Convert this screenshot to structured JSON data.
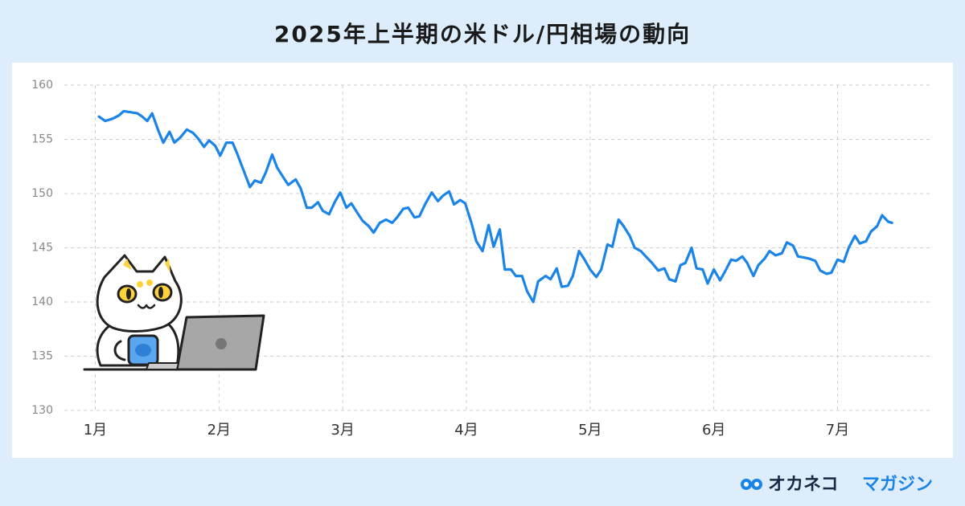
{
  "chart_data": {
    "type": "line",
    "title": "2025年上半期の米ドル/円相場の動向",
    "color": "#1a84e8",
    "grid": true,
    "xlim": [
      0.75,
      7.77
    ],
    "ylim": [
      130,
      160
    ],
    "yticks": [
      130,
      135,
      140,
      145,
      150,
      155,
      160
    ],
    "xticks": [
      {
        "value": 1,
        "label": "1月"
      },
      {
        "value": 2,
        "label": "2月"
      },
      {
        "value": 3,
        "label": "3月"
      },
      {
        "value": 4,
        "label": "4月"
      },
      {
        "value": 5,
        "label": "5月"
      },
      {
        "value": 6,
        "label": "6月"
      },
      {
        "value": 7,
        "label": "7月"
      }
    ],
    "x": [
      1.03,
      1.08,
      1.14,
      1.19,
      1.23,
      1.29,
      1.34,
      1.38,
      1.42,
      1.46,
      1.51,
      1.55,
      1.6,
      1.64,
      1.69,
      1.74,
      1.79,
      1.83,
      1.88,
      1.92,
      1.97,
      2.01,
      2.06,
      2.11,
      2.15,
      2.2,
      2.25,
      2.29,
      2.34,
      2.38,
      2.43,
      2.47,
      2.52,
      2.56,
      2.62,
      2.66,
      2.71,
      2.75,
      2.8,
      2.84,
      2.89,
      2.94,
      2.98,
      3.03,
      3.07,
      3.12,
      3.16,
      3.21,
      3.25,
      3.3,
      3.35,
      3.4,
      3.44,
      3.49,
      3.53,
      3.58,
      3.62,
      3.67,
      3.72,
      3.77,
      3.81,
      3.86,
      3.9,
      3.95,
      3.99,
      4.04,
      4.08,
      4.13,
      4.18,
      4.22,
      4.27,
      4.31,
      4.36,
      4.4,
      4.45,
      4.49,
      4.54,
      4.58,
      4.64,
      4.68,
      4.73,
      4.77,
      4.82,
      4.86,
      4.91,
      4.95,
      5.0,
      5.05,
      5.09,
      5.14,
      5.18,
      5.23,
      5.27,
      5.32,
      5.36,
      5.41,
      5.45,
      5.5,
      5.55,
      5.6,
      5.64,
      5.69,
      5.73,
      5.77,
      5.82,
      5.86,
      5.91,
      5.95,
      6.0,
      6.05,
      6.09,
      6.14,
      6.18,
      6.23,
      6.27,
      6.32,
      6.36,
      6.41,
      6.45,
      6.5,
      6.55,
      6.59,
      6.64,
      6.68,
      6.73,
      6.77,
      6.82,
      6.86,
      6.91,
      6.95,
      7.0,
      7.05,
      7.09,
      7.14,
      7.18,
      7.23,
      7.27,
      7.32,
      7.36,
      7.41,
      7.44
    ],
    "values": [
      157.1,
      156.7,
      156.9,
      157.2,
      157.6,
      157.5,
      157.4,
      157.1,
      156.7,
      157.4,
      155.8,
      154.7,
      155.7,
      154.7,
      155.2,
      155.9,
      155.6,
      155.1,
      154.3,
      154.9,
      154.4,
      153.5,
      154.7,
      154.7,
      153.6,
      152.1,
      150.6,
      151.2,
      151.0,
      152.0,
      153.6,
      152.4,
      151.5,
      150.8,
      151.3,
      150.5,
      148.7,
      148.7,
      149.2,
      148.4,
      148.1,
      149.3,
      150.1,
      148.7,
      149.1,
      148.2,
      147.5,
      147.0,
      146.4,
      147.3,
      147.6,
      147.3,
      147.8,
      148.6,
      148.7,
      147.8,
      147.9,
      149.1,
      150.1,
      149.3,
      149.8,
      150.2,
      149.0,
      149.4,
      149.1,
      147.3,
      145.6,
      144.7,
      147.1,
      145.1,
      146.7,
      143.0,
      143.0,
      142.4,
      142.4,
      141.0,
      140.0,
      141.9,
      142.4,
      142.1,
      143.1,
      141.4,
      141.5,
      142.4,
      144.7,
      144.0,
      143.0,
      142.3,
      143.0,
      145.3,
      145.1,
      147.6,
      147.0,
      146.1,
      145.0,
      144.7,
      144.2,
      143.6,
      142.9,
      143.1,
      142.1,
      141.9,
      143.4,
      143.6,
      145.0,
      143.1,
      143.0,
      141.7,
      143.0,
      142.0,
      142.8,
      143.9,
      143.8,
      144.2,
      143.6,
      142.4,
      143.4,
      144.0,
      144.7,
      144.3,
      144.5,
      145.5,
      145.2,
      144.2,
      144.1,
      144.0,
      143.8,
      142.9,
      142.6,
      142.7,
      143.9,
      143.7,
      145.0,
      146.1,
      145.4,
      145.6,
      146.5,
      147.0,
      148.0,
      147.4,
      147.3
    ]
  },
  "logo": {
    "brand": "オカネコ",
    "suffix": "マガジン"
  }
}
